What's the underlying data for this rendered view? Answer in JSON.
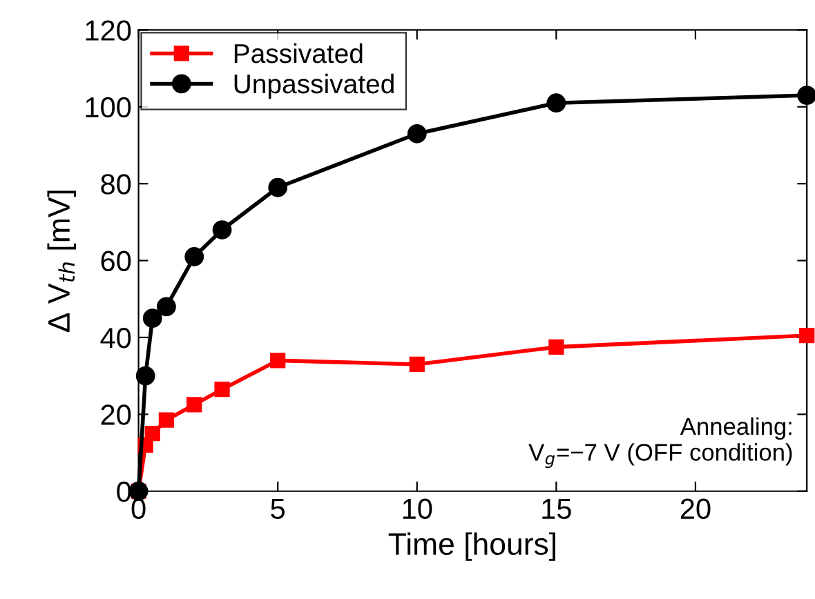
{
  "chart_data": {
    "type": "line",
    "xlabel": "Time [hours]",
    "ylabel": "Δ V$_{th}$ [mV]",
    "xlim": [
      0,
      24
    ],
    "xticks": [
      0,
      5,
      10,
      15,
      20
    ],
    "ylim": [
      0,
      120
    ],
    "yticks": [
      0,
      20,
      40,
      60,
      80,
      100,
      120
    ],
    "grid": false,
    "legend": "top left",
    "line_style": "solid",
    "annotations": [
      "Annealing:\nV$_{g}$=−7 V (OFF condition)"
    ],
    "series": [
      {
        "name": "Passivated",
        "color": "#ff0000",
        "marker": "square",
        "x": [
          0,
          0.25,
          0.5,
          1,
          2,
          3,
          5,
          10,
          15,
          24
        ],
        "values": [
          0,
          12,
          15,
          18.5,
          22.5,
          26.5,
          34,
          33,
          37.5,
          40.5
        ]
      },
      {
        "name": "Unpassivated",
        "color": "#000000",
        "marker": "circle",
        "x": [
          0,
          0.25,
          0.5,
          1,
          2,
          3,
          5,
          10,
          15,
          24
        ],
        "values": [
          0,
          30,
          45,
          48,
          61,
          68,
          79,
          93,
          101,
          103
        ]
      }
    ]
  }
}
